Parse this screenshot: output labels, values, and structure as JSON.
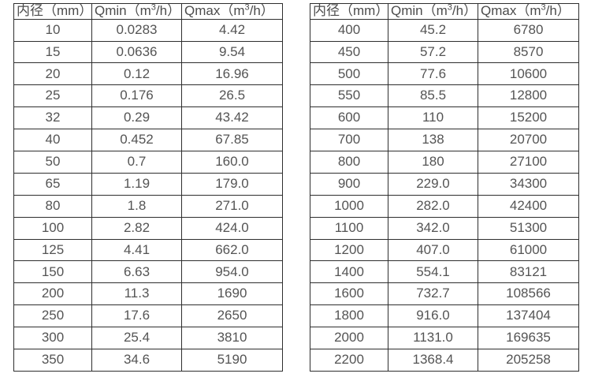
{
  "page": {
    "description_colors": {
      "background": "#ffffff",
      "border": "#2e2e2e",
      "text": "#545454"
    }
  },
  "tables": [
    {
      "id": "flow-range-table-small-diameters",
      "columns": [
        {
          "pre": "内径（mm）",
          "sup": "",
          "post": ""
        },
        {
          "pre": "Qmin（m",
          "sup": "3",
          "post": "/h）"
        },
        {
          "pre": "Qmax（m",
          "sup": "3",
          "post": "/h）"
        }
      ],
      "rows": [
        [
          "10",
          "0.0283",
          "4.42"
        ],
        [
          "15",
          "0.0636",
          "9.54"
        ],
        [
          "20",
          "0.12",
          "16.96"
        ],
        [
          "25",
          "0.176",
          "26.5"
        ],
        [
          "32",
          "0.29",
          "43.42"
        ],
        [
          "40",
          "0.452",
          "67.85"
        ],
        [
          "50",
          "0.7",
          "160.0"
        ],
        [
          "65",
          "1.19",
          "179.0"
        ],
        [
          "80",
          "1.8",
          "271.0"
        ],
        [
          "100",
          "2.82",
          "424.0"
        ],
        [
          "125",
          "4.41",
          "662.0"
        ],
        [
          "150",
          "6.63",
          "954.0"
        ],
        [
          "200",
          "11.3",
          "1690"
        ],
        [
          "250",
          "17.6",
          "2650"
        ],
        [
          "300",
          "25.4",
          "3810"
        ],
        [
          "350",
          "34.6",
          "5190"
        ]
      ]
    },
    {
      "id": "flow-range-table-large-diameters",
      "columns": [
        {
          "pre": "内径（mm）",
          "sup": "",
          "post": ""
        },
        {
          "pre": "Qmin（m",
          "sup": "3",
          "post": "/h）"
        },
        {
          "pre": "Qmax（m",
          "sup": "3",
          "post": "/h）"
        }
      ],
      "rows": [
        [
          "400",
          "45.2",
          "6780"
        ],
        [
          "450",
          "57.2",
          "8570"
        ],
        [
          "500",
          "77.6",
          "10600"
        ],
        [
          "550",
          "85.5",
          "12800"
        ],
        [
          "600",
          "110",
          "15200"
        ],
        [
          "700",
          "138",
          "20700"
        ],
        [
          "800",
          "180",
          "27100"
        ],
        [
          "900",
          "229.0",
          "34300"
        ],
        [
          "1000",
          "282.0",
          "42400"
        ],
        [
          "1100",
          "342.0",
          "51300"
        ],
        [
          "1200",
          "407.0",
          "61000"
        ],
        [
          "1400",
          "554.1",
          "83121"
        ],
        [
          "1600",
          "732.7",
          "108566"
        ],
        [
          "1800",
          "916.0",
          "137404"
        ],
        [
          "2000",
          "1131.0",
          "169635"
        ],
        [
          "2200",
          "1368.4",
          "205258"
        ]
      ]
    }
  ]
}
